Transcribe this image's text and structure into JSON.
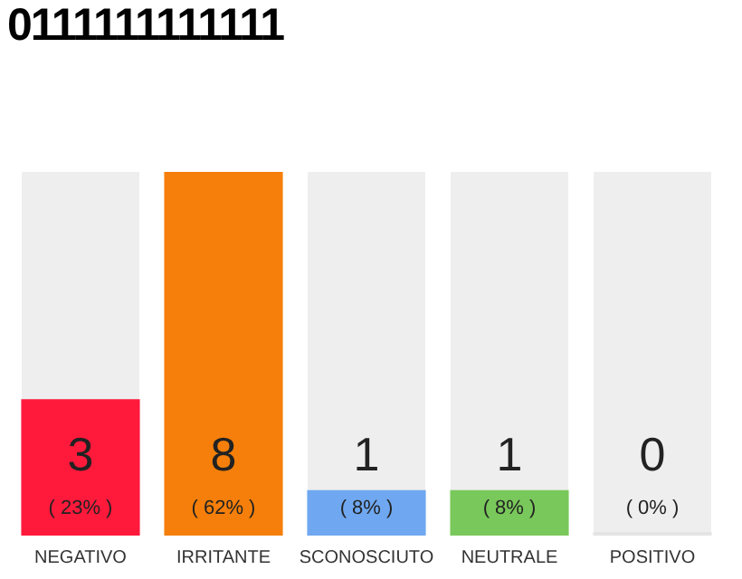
{
  "chart_data": {
    "type": "bar",
    "title": "0111111111111",
    "categories": [
      "NEGATIVO",
      "IRRITANTE",
      "SCONOSCIUTO",
      "NEUTRALE",
      "POSITIVO"
    ],
    "values": [
      3,
      8,
      1,
      1,
      0
    ],
    "colors": [
      "#ff1a3c",
      "#f57f0a",
      "#6fa8f0",
      "#79c85b",
      "#e4e4e4"
    ],
    "ylim": [
      0,
      8
    ],
    "tick_labels": "x",
    "grid": false,
    "legend": false,
    "value_labels": [
      "3\n( 23% )",
      "8\n( 62% )",
      "1\n( 8% )",
      "1\n( 8% )",
      "0\n( 0% )"
    ]
  }
}
